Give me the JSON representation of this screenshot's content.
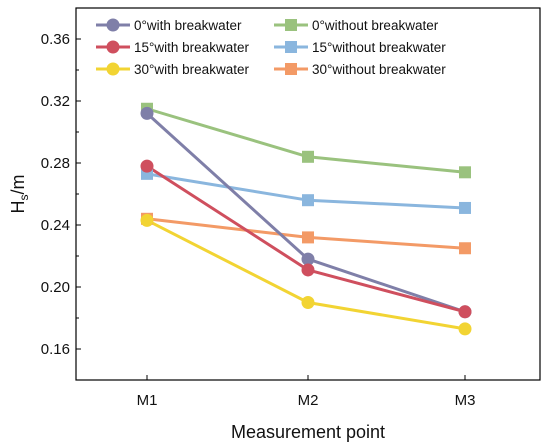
{
  "chart_data": {
    "type": "line",
    "xlabel": "Measurement point",
    "ylabel_main": "H",
    "ylabel_sub": "s",
    "ylabel_unit": "/m",
    "categories": [
      "M1",
      "M2",
      "M3"
    ],
    "ylim": [
      0.14,
      0.38
    ],
    "yticks": [
      0.16,
      0.2,
      0.24,
      0.28,
      0.32,
      0.36
    ],
    "ytick_labels": [
      "0.16",
      "0.20",
      "0.24",
      "0.28",
      "0.32",
      "0.36"
    ],
    "grid": false,
    "legend_position": "top",
    "series": [
      {
        "name": "0°with breakwater",
        "marker": "circle",
        "color": "#7f7fa8",
        "values": [
          0.312,
          0.218,
          0.184
        ]
      },
      {
        "name": "0°without breakwater",
        "marker": "square",
        "color": "#9ac27e",
        "values": [
          0.315,
          0.284,
          0.274
        ]
      },
      {
        "name": "15°with breakwater",
        "marker": "circle",
        "color": "#cf4f5e",
        "values": [
          0.278,
          0.211,
          0.184
        ]
      },
      {
        "name": "15°without breakwater",
        "marker": "square",
        "color": "#8ab6de",
        "values": [
          0.273,
          0.256,
          0.251
        ]
      },
      {
        "name": "30°with breakwater",
        "marker": "circle",
        "color": "#f2d433",
        "values": [
          0.243,
          0.19,
          0.173
        ]
      },
      {
        "name": "30°without breakwater",
        "marker": "square",
        "color": "#f39a66",
        "values": [
          0.244,
          0.232,
          0.225
        ]
      }
    ]
  }
}
